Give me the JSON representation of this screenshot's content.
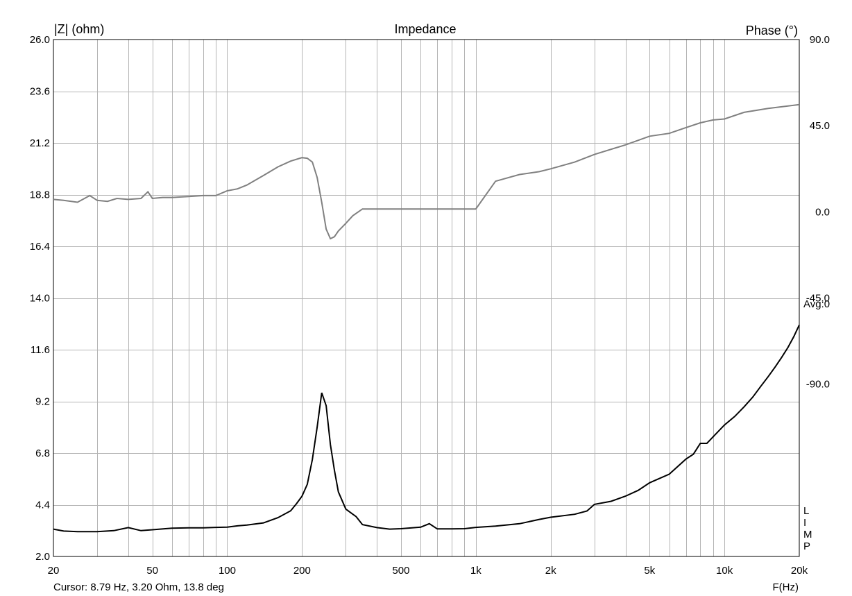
{
  "chart_data": {
    "type": "line",
    "title": "Impedance",
    "ylabel_left": "|Z| (ohm)",
    "ylabel_right": "Phase (°)",
    "xlabel": "F(Hz)",
    "x_scale": "log",
    "xlim": [
      20,
      20000
    ],
    "ylim_left": [
      2.0,
      26.0
    ],
    "ylim_right": [
      -180.0,
      90.0
    ],
    "x_ticks": [
      {
        "value": 20,
        "label": "20"
      },
      {
        "value": 50,
        "label": "50"
      },
      {
        "value": 100,
        "label": "100"
      },
      {
        "value": 200,
        "label": "200"
      },
      {
        "value": 500,
        "label": "500"
      },
      {
        "value": 1000,
        "label": "1k"
      },
      {
        "value": 2000,
        "label": "2k"
      },
      {
        "value": 5000,
        "label": "5k"
      },
      {
        "value": 10000,
        "label": "10k"
      },
      {
        "value": 20000,
        "label": "20k"
      }
    ],
    "y_ticks_left": [
      "26.0",
      "23.6",
      "21.2",
      "18.8",
      "16.4",
      "14.0",
      "11.6",
      "9.2",
      "6.8",
      "4.4",
      "2.0"
    ],
    "y_ticks_right": [
      {
        "value": 90,
        "label": "90.0"
      },
      {
        "value": 45,
        "label": "45.0"
      },
      {
        "value": 0,
        "label": "0.0"
      },
      {
        "value": -45,
        "label": "-45.0"
      },
      {
        "value": -90,
        "label": "-90.0"
      }
    ],
    "grid": true,
    "side_labels": {
      "avg": "Avg:0",
      "lim": [
        "L",
        "I",
        "M",
        "P"
      ]
    },
    "cursor_text": "Cursor: 8.79 Hz, 3.20 Ohm, 13.8 deg",
    "series": [
      {
        "axis": "left",
        "color": "#000000",
        "x": [
          20,
          22,
          25,
          30,
          35,
          40,
          45,
          50,
          60,
          70,
          80,
          90,
          100,
          110,
          120,
          140,
          160,
          180,
          190,
          200,
          210,
          220,
          230,
          240,
          250,
          260,
          270,
          280,
          300,
          330,
          350,
          400,
          450,
          500,
          600,
          650,
          700,
          800,
          900,
          1000,
          1200,
          1500,
          1800,
          2000,
          2500,
          2800,
          3000,
          3500,
          4000,
          4500,
          5000,
          6000,
          7000,
          7500,
          8000,
          8500,
          9000,
          10000,
          11000,
          12000,
          13000,
          14000,
          15000,
          16000,
          17000,
          18000,
          19000,
          20000
        ],
        "y": [
          3.27,
          3.18,
          3.15,
          3.15,
          3.2,
          3.34,
          3.2,
          3.24,
          3.31,
          3.33,
          3.33,
          3.35,
          3.36,
          3.42,
          3.46,
          3.56,
          3.8,
          4.12,
          4.45,
          4.8,
          5.35,
          6.5,
          8.0,
          9.6,
          9.0,
          7.2,
          6.0,
          5.0,
          4.2,
          3.85,
          3.48,
          3.34,
          3.27,
          3.29,
          3.36,
          3.52,
          3.28,
          3.28,
          3.29,
          3.35,
          3.41,
          3.52,
          3.72,
          3.82,
          3.96,
          4.11,
          4.42,
          4.56,
          4.8,
          5.07,
          5.42,
          5.82,
          6.52,
          6.75,
          7.25,
          7.25,
          7.55,
          8.1,
          8.5,
          8.95,
          9.4,
          9.9,
          10.35,
          10.8,
          11.25,
          11.7,
          12.2,
          12.75
        ]
      },
      {
        "axis": "right",
        "color": "#808080",
        "x": [
          20,
          22,
          25,
          28,
          30,
          33,
          36,
          40,
          45,
          48,
          50,
          55,
          60,
          70,
          80,
          90,
          100,
          110,
          120,
          140,
          160,
          180,
          200,
          210,
          220,
          230,
          240,
          250,
          260,
          270,
          280,
          300,
          320,
          350,
          400,
          450,
          500,
          550,
          600,
          650,
          700,
          800,
          900,
          1000,
          1200,
          1500,
          1800,
          2000,
          2500,
          3000,
          4000,
          5000,
          6000,
          7000,
          8000,
          9000,
          10000,
          12000,
          15000,
          20000
        ],
        "y": [
          6.5,
          6.0,
          5.0,
          8.5,
          6.0,
          5.5,
          7.0,
          6.5,
          7.0,
          10.5,
          7.0,
          7.5,
          7.5,
          8.0,
          8.5,
          8.5,
          11.0,
          12.0,
          14.0,
          19.0,
          23.5,
          26.5,
          28.3,
          28.0,
          26.0,
          18.0,
          5.0,
          -9.0,
          -14.0,
          -13.0,
          -10.0,
          -6.0,
          -2.0,
          1.5,
          1.5,
          1.5,
          1.5,
          1.5,
          1.5,
          1.5,
          1.5,
          1.5,
          1.5,
          1.5,
          16.0,
          19.5,
          21.0,
          22.5,
          26.0,
          30.0,
          35.0,
          39.5,
          41.0,
          44.0,
          46.5,
          48.0,
          48.5,
          52.0,
          54.0,
          56.0
        ]
      }
    ]
  }
}
